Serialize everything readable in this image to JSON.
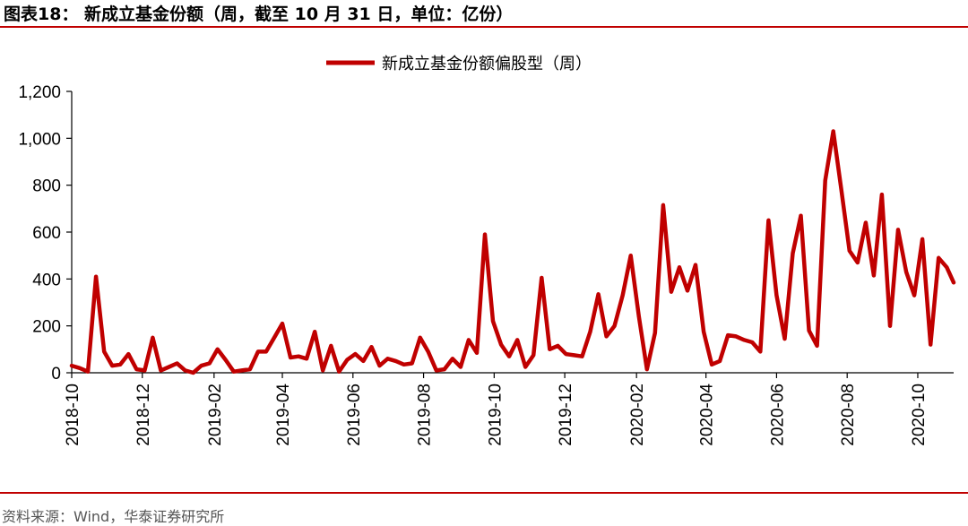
{
  "figure": {
    "title": "图表18： 新成立基金份额（周，截至 10 月 31 日，单位：亿份）",
    "source": "资料来源：Wind，华泰证券研究所"
  },
  "chart_data": {
    "type": "line",
    "title": "",
    "xlabel": "",
    "ylabel": "",
    "ylim": [
      0,
      1200
    ],
    "yticks": [
      0,
      200,
      400,
      600,
      800,
      1000,
      1200
    ],
    "ytick_labels": [
      "0",
      "200",
      "400",
      "600",
      "800",
      "1,000",
      "1,200"
    ],
    "xlim": [
      "2018-10-01",
      "2020-11-01"
    ],
    "xticks": [
      "2018-10",
      "2018-12",
      "2019-02",
      "2019-04",
      "2019-06",
      "2019-08",
      "2019-10",
      "2019-12",
      "2020-02",
      "2020-04",
      "2020-06",
      "2020-08",
      "2020-10"
    ],
    "grid": false,
    "legend": "top-center",
    "color": "#c00000",
    "series": [
      {
        "name": "新成立基金份额偏股型（周）",
        "x": [
          "2018-10-01",
          "2018-10-08",
          "2018-10-15",
          "2018-10-22",
          "2018-10-29",
          "2018-11-05",
          "2018-11-12",
          "2018-11-19",
          "2018-11-26",
          "2018-12-03",
          "2018-12-10",
          "2018-12-17",
          "2018-12-24",
          "2018-12-31",
          "2019-01-07",
          "2019-01-14",
          "2019-01-21",
          "2019-01-28",
          "2019-02-04",
          "2019-02-11",
          "2019-02-18",
          "2019-02-25",
          "2019-03-04",
          "2019-03-11",
          "2019-03-18",
          "2019-03-25",
          "2019-04-01",
          "2019-04-08",
          "2019-04-15",
          "2019-04-22",
          "2019-04-29",
          "2019-05-06",
          "2019-05-13",
          "2019-05-20",
          "2019-05-27",
          "2019-06-03",
          "2019-06-10",
          "2019-06-17",
          "2019-06-24",
          "2019-07-01",
          "2019-07-08",
          "2019-07-15",
          "2019-07-22",
          "2019-07-29",
          "2019-08-05",
          "2019-08-12",
          "2019-08-19",
          "2019-08-26",
          "2019-09-02",
          "2019-09-09",
          "2019-09-16",
          "2019-09-23",
          "2019-09-30",
          "2019-10-07",
          "2019-10-14",
          "2019-10-21",
          "2019-10-28",
          "2019-11-04",
          "2019-11-11",
          "2019-11-18",
          "2019-11-25",
          "2019-12-02",
          "2019-12-09",
          "2019-12-16",
          "2019-12-23",
          "2019-12-30",
          "2020-01-06",
          "2020-01-13",
          "2020-01-20",
          "2020-01-27",
          "2020-02-03",
          "2020-02-10",
          "2020-02-17",
          "2020-02-24",
          "2020-03-02",
          "2020-03-09",
          "2020-03-16",
          "2020-03-23",
          "2020-03-30",
          "2020-04-06",
          "2020-04-13",
          "2020-04-20",
          "2020-04-27",
          "2020-05-04",
          "2020-05-11",
          "2020-05-18",
          "2020-05-25",
          "2020-06-01",
          "2020-06-08",
          "2020-06-15",
          "2020-06-22",
          "2020-06-29",
          "2020-07-06",
          "2020-07-13",
          "2020-07-20",
          "2020-07-27",
          "2020-08-03",
          "2020-08-10",
          "2020-08-17",
          "2020-08-24",
          "2020-08-31",
          "2020-09-07",
          "2020-09-14",
          "2020-09-21",
          "2020-09-28",
          "2020-10-05",
          "2020-10-12",
          "2020-10-19",
          "2020-10-26",
          "2020-11-01"
        ],
        "values": [
          30,
          20,
          5,
          410,
          90,
          30,
          35,
          80,
          15,
          10,
          150,
          10,
          25,
          40,
          10,
          0,
          30,
          40,
          100,
          55,
          5,
          10,
          15,
          90,
          90,
          150,
          210,
          65,
          70,
          60,
          175,
          10,
          115,
          5,
          55,
          80,
          50,
          110,
          30,
          60,
          50,
          35,
          40,
          150,
          90,
          10,
          15,
          60,
          25,
          140,
          85,
          590,
          220,
          120,
          70,
          140,
          25,
          75,
          405,
          100,
          115,
          80,
          75,
          70,
          175,
          335,
          155,
          200,
          330,
          500,
          240,
          15,
          170,
          715,
          345,
          450,
          350,
          460,
          175,
          35,
          50,
          160,
          155,
          140,
          130,
          90,
          650,
          330,
          145,
          510,
          670,
          180,
          115,
          820,
          1030,
          780,
          520,
          470,
          640,
          415,
          760,
          200,
          610,
          430,
          330,
          570,
          120,
          490,
          450,
          385
        ]
      }
    ]
  }
}
